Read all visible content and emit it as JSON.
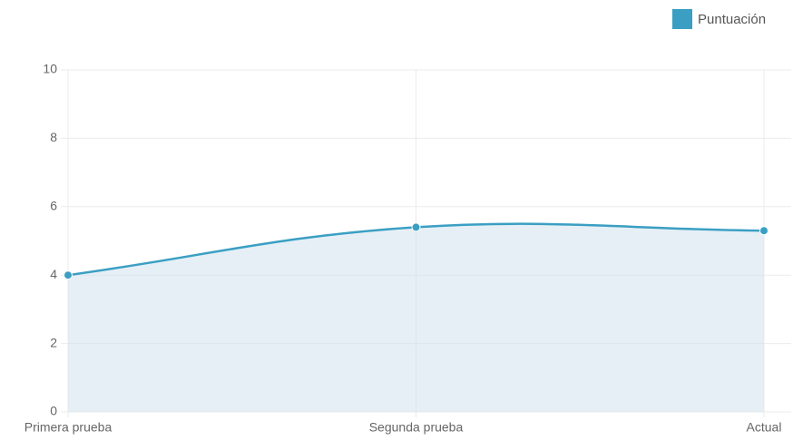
{
  "chart_data": {
    "type": "line",
    "categories": [
      "Primera prueba",
      "Segunda prueba",
      "Actual"
    ],
    "series": [
      {
        "name": "Puntuación",
        "color": "#3a9fc3",
        "values": [
          4,
          5.4,
          5.3
        ]
      }
    ],
    "ylim": [
      0,
      10
    ],
    "yticks": [
      0,
      2,
      4,
      6,
      8,
      10
    ],
    "grid": true,
    "legend": "top-right",
    "fill": true
  }
}
